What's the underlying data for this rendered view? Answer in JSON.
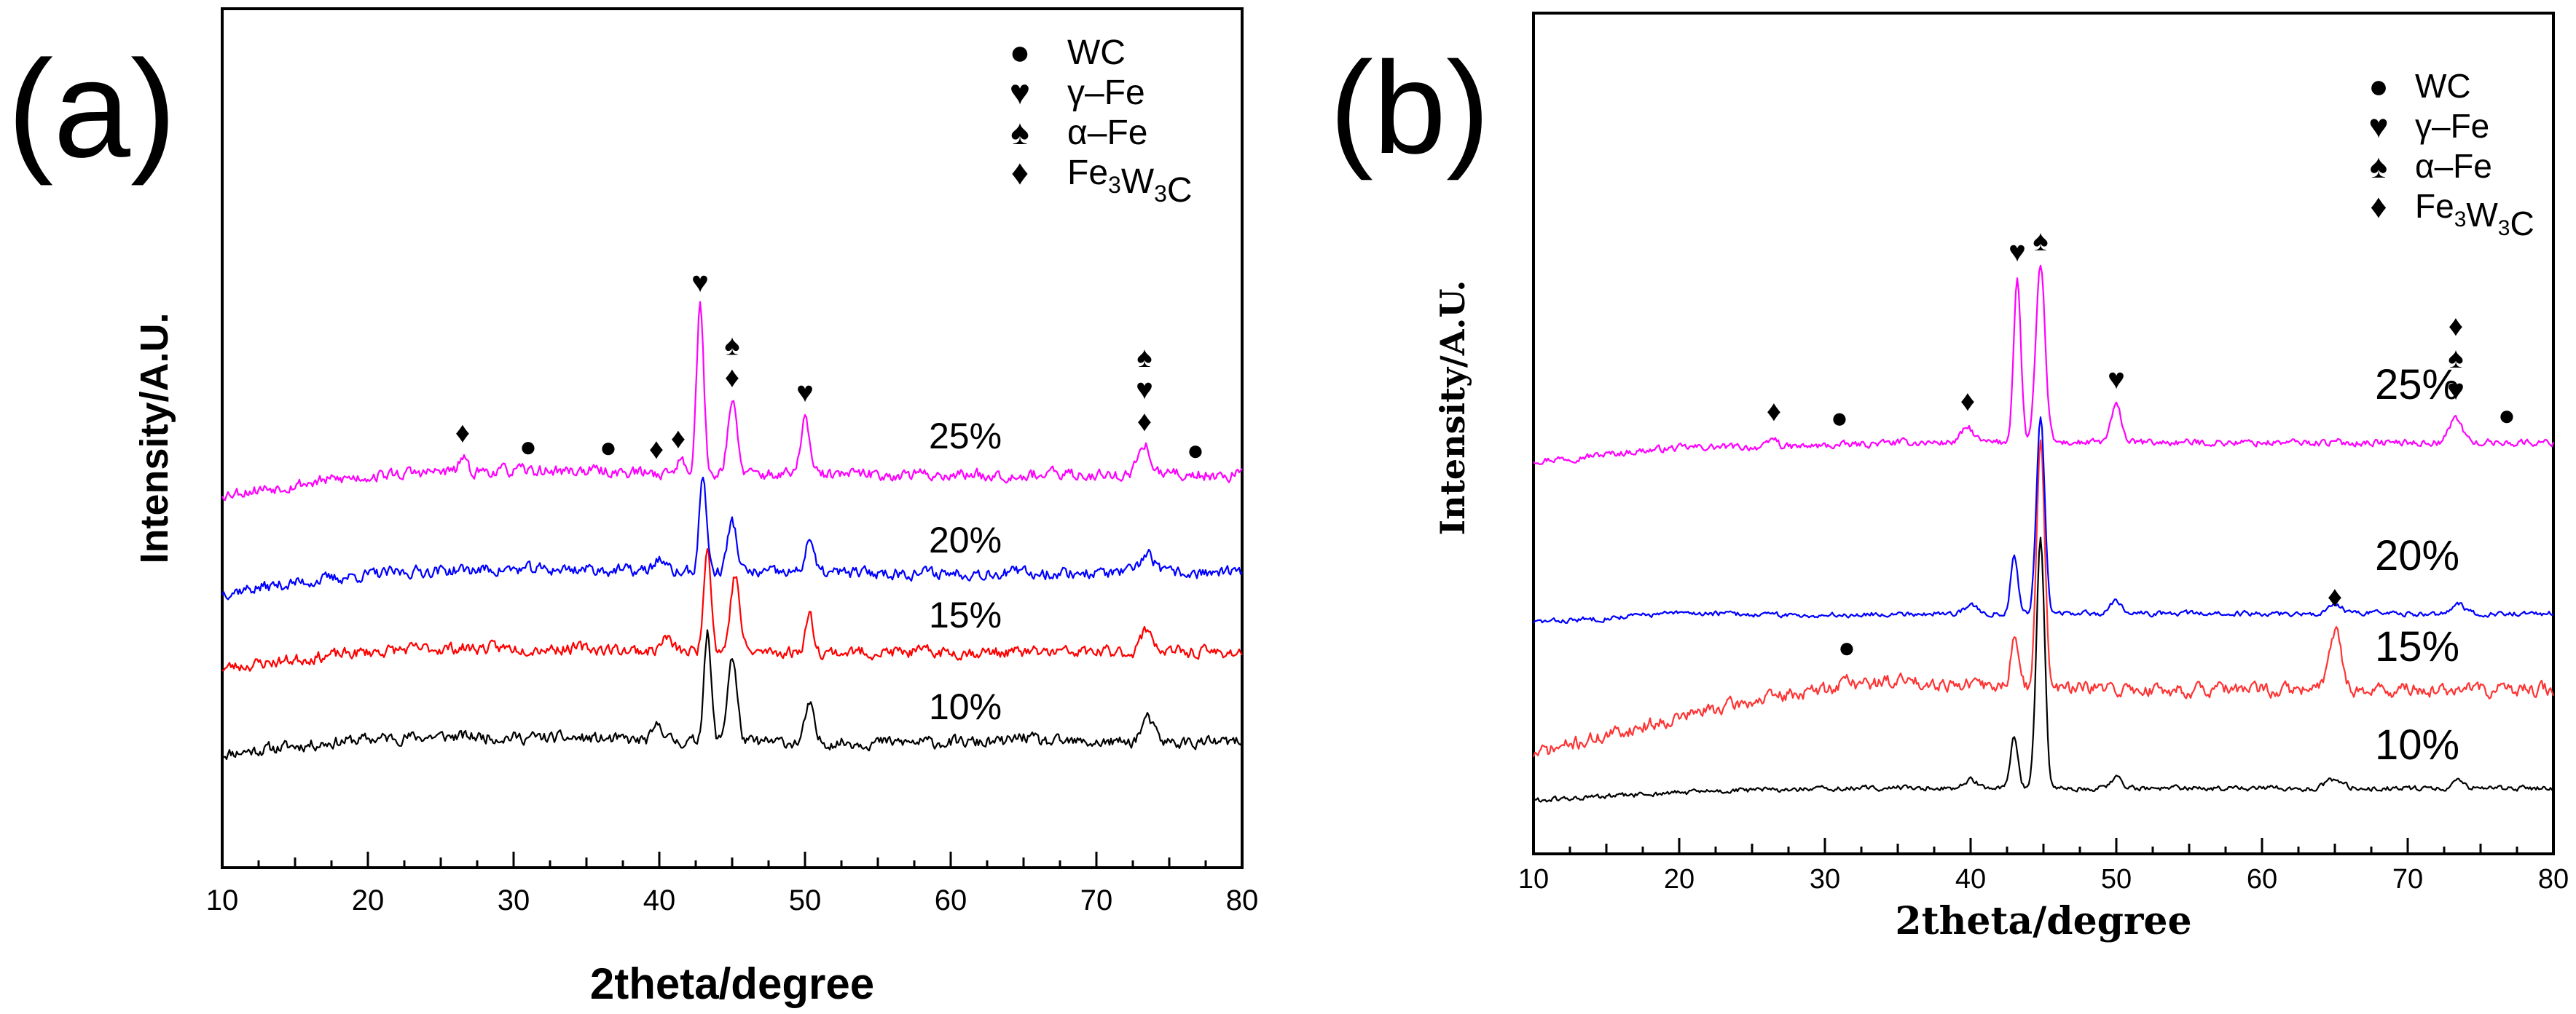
{
  "chart_data": [
    {
      "panel_label": "(a)",
      "type": "line",
      "xlabel": "2theta/degree",
      "ylabel": "Intensity/A.U.",
      "xlim": [
        10,
        80
      ],
      "xticks": [
        10,
        20,
        30,
        40,
        50,
        60,
        70,
        80
      ],
      "xtick_labels": [
        "10",
        "20",
        "30",
        "40",
        "50",
        "60",
        "70",
        "80"
      ],
      "legend": [
        {
          "symbol": "●",
          "label": "WC"
        },
        {
          "symbol": "♥",
          "label": "γ–Fe"
        },
        {
          "symbol": "♠",
          "label": "α–Fe"
        },
        {
          "symbol": "♦",
          "label": "Fe3W3C"
        }
      ],
      "series": [
        {
          "name": "10%",
          "color": "#000000",
          "noise": 7,
          "seed": 11,
          "baseline": {
            "start": 150,
            "hump": 72,
            "hump_center": 22,
            "hump_width": 12,
            "end": 172
          },
          "peaks": [
            [
              40,
              22,
              0.5
            ],
            [
              43.3,
              150,
              0.35
            ],
            [
              45.0,
              118,
              0.45
            ],
            [
              50.3,
              52,
              0.4
            ],
            [
              73.5,
              32,
              0.6
            ],
            [
              65,
              8,
              0.8
            ]
          ]
        },
        {
          "name": "15%",
          "color": "#ff0000",
          "noise": 7,
          "seed": 23,
          "baseline": {
            "start": 268,
            "hump": 70,
            "hump_center": 22,
            "hump_width": 12,
            "end": 296
          },
          "peaks": [
            [
              40.5,
              18,
              0.5
            ],
            [
              43.3,
              150,
              0.35
            ],
            [
              45.2,
              105,
              0.45
            ],
            [
              50.3,
              50,
              0.4
            ],
            [
              73.5,
              32,
              0.6
            ]
          ]
        },
        {
          "name": "20%",
          "color": "#0000ff",
          "noise": 7,
          "seed": 37,
          "baseline": {
            "start": 372,
            "hump": 70,
            "hump_center": 22,
            "hump_width": 12,
            "end": 405
          },
          "peaks": [
            [
              40,
              18,
              0.5
            ],
            [
              43.0,
              132,
              0.35
            ],
            [
              45.0,
              70,
              0.45
            ],
            [
              50.3,
              48,
              0.4
            ],
            [
              73.5,
              28,
              0.6
            ]
          ]
        },
        {
          "name": "25%",
          "color": "#ff00ff",
          "noise": 7,
          "seed": 53,
          "baseline": {
            "start": 507,
            "hump": 72,
            "hump_center": 22,
            "hump_width": 12,
            "end": 540
          },
          "peaks": [
            [
              26.5,
              20,
              0.3
            ],
            [
              41.5,
              18,
              0.5
            ],
            [
              42.8,
              230,
              0.35
            ],
            [
              45.0,
              100,
              0.45
            ],
            [
              50.0,
              80,
              0.4
            ],
            [
              73.3,
              40,
              0.6
            ]
          ]
        }
      ],
      "markers": [
        {
          "x": 26.5,
          "symbols": [
            "♦"
          ]
        },
        {
          "x": 31,
          "symbols": [
            "●"
          ]
        },
        {
          "x": 36.5,
          "symbols": [
            "●"
          ]
        },
        {
          "x": 39.8,
          "symbols": [
            "♦"
          ]
        },
        {
          "x": 41.3,
          "symbols": [
            "♦"
          ]
        },
        {
          "x": 42.8,
          "symbols": [
            "♥"
          ]
        },
        {
          "x": 45,
          "symbols": [
            "♠",
            "♦"
          ]
        },
        {
          "x": 50,
          "symbols": [
            "♥"
          ]
        },
        {
          "x": 73.3,
          "symbols": [
            "♠",
            "♥",
            "♦"
          ]
        },
        {
          "x": 76.8,
          "symbols": [
            "●"
          ]
        }
      ]
    },
    {
      "panel_label": "(b)",
      "type": "line",
      "xlabel": "2theta/degree",
      "ylabel": "Intensity/A.U.",
      "xlim": [
        10,
        80
      ],
      "xticks": [
        10,
        20,
        30,
        40,
        50,
        60,
        70,
        80
      ],
      "xtick_labels": [
        "10",
        "20",
        "30",
        "40",
        "50",
        "60",
        "70",
        "80"
      ],
      "legend": [
        {
          "symbol": "●",
          "label": "WC"
        },
        {
          "symbol": "♥",
          "label": "γ–Fe"
        },
        {
          "symbol": "♠",
          "label": "α–Fe"
        },
        {
          "symbol": "♦",
          "label": "Fe3W3C"
        }
      ],
      "series": [
        {
          "name": "10%",
          "color": "#000000",
          "noise": 3,
          "seed": 61,
          "baseline": {
            "start": 72,
            "hump": 20,
            "hump_center": 22,
            "hump_width": 10,
            "end": 90
          },
          "peaks": [
            [
              40,
              12,
              0.6
            ],
            [
              43.0,
              70,
              0.35
            ],
            [
              44.8,
              340,
              0.4
            ],
            [
              50.0,
              15,
              0.6
            ],
            [
              65,
              12,
              0.8
            ],
            [
              73.5,
              10,
              0.6
            ]
          ]
        },
        {
          "name": "15%",
          "color": "#ff3333",
          "noise": 8,
          "seed": 71,
          "baseline": {
            "start": 130,
            "hump": 90,
            "hump_center": 25,
            "hump_width": 14,
            "end": 225
          },
          "peaks": [
            [
              31.5,
              10,
              0.6
            ],
            [
              43.0,
              70,
              0.35
            ],
            [
              44.8,
              340,
              0.4
            ],
            [
              65,
              85,
              0.6
            ]
          ]
        },
        {
          "name": "20%",
          "color": "#0000ff",
          "noise": 3,
          "seed": 83,
          "baseline": {
            "start": 318,
            "hump": 30,
            "hump_center": 20,
            "hump_width": 6,
            "end": 330
          },
          "peaks": [
            [
              40,
              12,
              0.6
            ],
            [
              43.0,
              80,
              0.35
            ],
            [
              44.8,
              270,
              0.4
            ],
            [
              50.0,
              18,
              0.6
            ],
            [
              65,
              10,
              0.8
            ],
            [
              73.5,
              12,
              0.6
            ]
          ]
        },
        {
          "name": "25%",
          "color": "#ff00ff",
          "noise": 4,
          "seed": 97,
          "baseline": {
            "start": 540,
            "hump": 30,
            "hump_center": 20,
            "hump_width": 6,
            "end": 565
          },
          "peaks": [
            [
              26.5,
              12,
              0.4
            ],
            [
              39.8,
              20,
              0.6
            ],
            [
              43.2,
              225,
              0.35
            ],
            [
              44.8,
              240,
              0.45
            ],
            [
              50.0,
              50,
              0.5
            ],
            [
              73.3,
              35,
              0.6
            ]
          ]
        }
      ],
      "markers": [
        {
          "x": 26.5,
          "symbols": [
            "♦"
          ]
        },
        {
          "x": 31,
          "symbols": [
            "●"
          ]
        },
        {
          "x": 39.8,
          "symbols": [
            "♦"
          ]
        },
        {
          "x": 43.2,
          "symbols": [
            "♥"
          ]
        },
        {
          "x": 44.8,
          "symbols": [
            "♠"
          ]
        },
        {
          "x": 50,
          "symbols": [
            "♥"
          ]
        },
        {
          "x": 73.3,
          "symbols": [
            "♦",
            "♠",
            "♥"
          ]
        },
        {
          "x": 76.8,
          "symbols": [
            "●"
          ]
        }
      ],
      "extra_markers": [
        {
          "x": 31.5,
          "symbol": "●",
          "near": "15%"
        },
        {
          "x": 65,
          "symbol": "♦",
          "near": "15%"
        }
      ]
    }
  ]
}
